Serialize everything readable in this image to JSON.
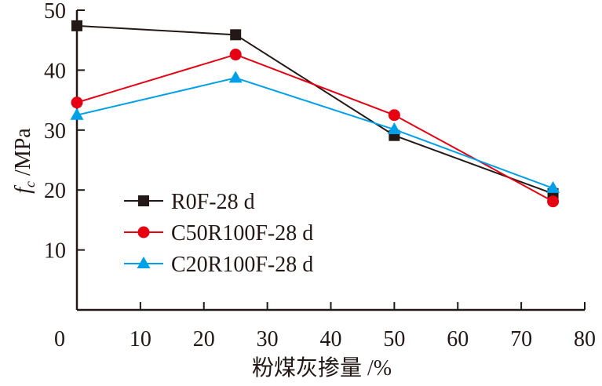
{
  "chart_data": {
    "type": "line",
    "title": "",
    "xlabel": "粉煤灰掺量 /%",
    "ylabel_main": "f",
    "ylabel_sub": "c",
    "ylabel_unit": " /MPa",
    "xlim": [
      0,
      80
    ],
    "ylim": [
      0,
      50
    ],
    "xticks": [
      0,
      10,
      20,
      30,
      40,
      50,
      60,
      70,
      80
    ],
    "yticks": [
      10,
      20,
      30,
      40,
      50
    ],
    "grid": false,
    "legend_position": "bottom-left",
    "x": [
      0,
      25,
      50,
      75
    ],
    "series": [
      {
        "name": "R0F-28 d",
        "values": [
          47.4,
          45.9,
          29.1,
          19.4
        ],
        "color": "#231815",
        "marker": "square"
      },
      {
        "name": "C50R100F-28 d",
        "values": [
          34.6,
          42.6,
          32.5,
          18.1
        ],
        "color": "#e60012",
        "marker": "circle"
      },
      {
        "name": "C20R100F-28 d",
        "values": [
          32.5,
          38.7,
          30.1,
          20.3
        ],
        "color": "#00a0e9",
        "marker": "triangle"
      }
    ]
  }
}
